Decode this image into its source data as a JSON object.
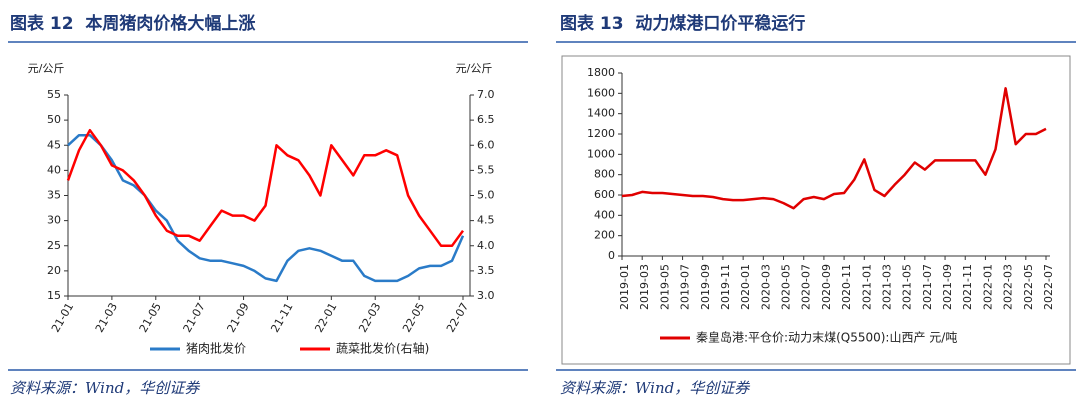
{
  "chart_data": [
    {
      "type": "line",
      "title": "图表 12  本周猪肉价格大幅上涨",
      "source": "资料来源：Wind，华创证券",
      "ylabel": "元/公斤",
      "y2label": "元/公斤",
      "categories": [
        "21-01",
        null,
        null,
        null,
        "21-03",
        null,
        null,
        null,
        "21-05",
        null,
        null,
        null,
        "21-07",
        null,
        null,
        null,
        "21-09",
        null,
        null,
        null,
        "21-11",
        null,
        null,
        null,
        "22-01",
        null,
        null,
        null,
        "22-03",
        null,
        null,
        null,
        "22-05",
        null,
        null,
        null,
        "22-07"
      ],
      "series": [
        {
          "name": "猪肉批发价",
          "color": "#2a7bc8",
          "values": [
            45,
            47,
            47,
            45,
            42,
            38,
            37,
            35,
            32,
            30,
            26,
            24,
            22.5,
            22,
            22,
            21.5,
            21,
            20,
            18.5,
            18,
            22,
            24,
            24.5,
            24,
            23,
            22,
            22,
            19,
            18,
            18,
            18,
            19,
            20.5,
            21,
            21,
            22,
            27
          ]
        },
        {
          "name": "蔬菜批发价(右轴)",
          "color": "#ff0000",
          "axis": "y2",
          "values": [
            5.3,
            5.9,
            6.3,
            6.0,
            5.6,
            5.5,
            5.3,
            5.0,
            4.6,
            4.3,
            4.2,
            4.2,
            4.1,
            4.4,
            4.7,
            4.6,
            4.6,
            4.5,
            4.8,
            6.0,
            5.8,
            5.7,
            5.4,
            5.0,
            6.0,
            5.7,
            5.4,
            5.8,
            5.8,
            5.9,
            5.8,
            5.0,
            4.6,
            4.3,
            4.0,
            4.0,
            4.3
          ]
        }
      ],
      "ylim": [
        15,
        55
      ],
      "yticks": [
        15,
        20,
        25,
        30,
        35,
        40,
        45,
        50,
        55
      ],
      "y2lim": [
        3,
        7
      ],
      "y2ticks": [
        {
          "value": 3,
          "label": "3.0"
        },
        3.5,
        {
          "value": 4,
          "label": "4.0"
        },
        4.5,
        {
          "value": 5,
          "label": "5.0"
        },
        5.5,
        {
          "value": 6,
          "label": "6.0"
        },
        6.5,
        {
          "value": 7,
          "label": "7.0"
        }
      ]
    },
    {
      "type": "line",
      "title": "图表 13  动力煤港口价平稳运行",
      "source": "资料来源：Wind，华创证券",
      "categories": [
        "2019-01",
        null,
        "2019-03",
        null,
        "2019-05",
        null,
        "2019-07",
        null,
        "2019-09",
        null,
        "2019-11",
        null,
        "2020-01",
        null,
        "2020-03",
        null,
        "2020-05",
        null,
        "2020-07",
        null,
        "2020-09",
        null,
        "2020-11",
        null,
        "2021-01",
        null,
        "2021-03",
        null,
        "2021-05",
        null,
        "2021-07",
        null,
        "2021-09",
        null,
        "2021-11",
        null,
        "2022-01",
        null,
        "2022-03",
        null,
        "2022-05",
        null,
        "2022-07"
      ],
      "series": [
        {
          "name": "秦皇岛港:平仓价:动力末煤(Q5500):山西产 元/吨",
          "color": "#e00000",
          "values": [
            590,
            600,
            630,
            620,
            620,
            610,
            600,
            590,
            590,
            580,
            560,
            550,
            550,
            560,
            570,
            560,
            520,
            470,
            560,
            580,
            560,
            610,
            620,
            750,
            950,
            650,
            590,
            700,
            800,
            920,
            850,
            940,
            940,
            940,
            940,
            940,
            800,
            1050,
            1650,
            1100,
            1200,
            1200,
            1250
          ]
        }
      ],
      "ylim": [
        0,
        1800
      ],
      "yticks": [
        0,
        200,
        400,
        600,
        800,
        1000,
        1200,
        1400,
        1600,
        1800
      ]
    }
  ]
}
